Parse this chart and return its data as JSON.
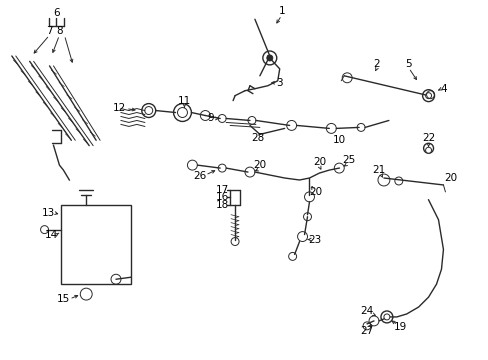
{
  "background_color": "#ffffff",
  "line_color": "#2a2a2a",
  "text_color": "#000000",
  "fig_width": 4.89,
  "fig_height": 3.6,
  "dpi": 100,
  "font_size": 7.5
}
